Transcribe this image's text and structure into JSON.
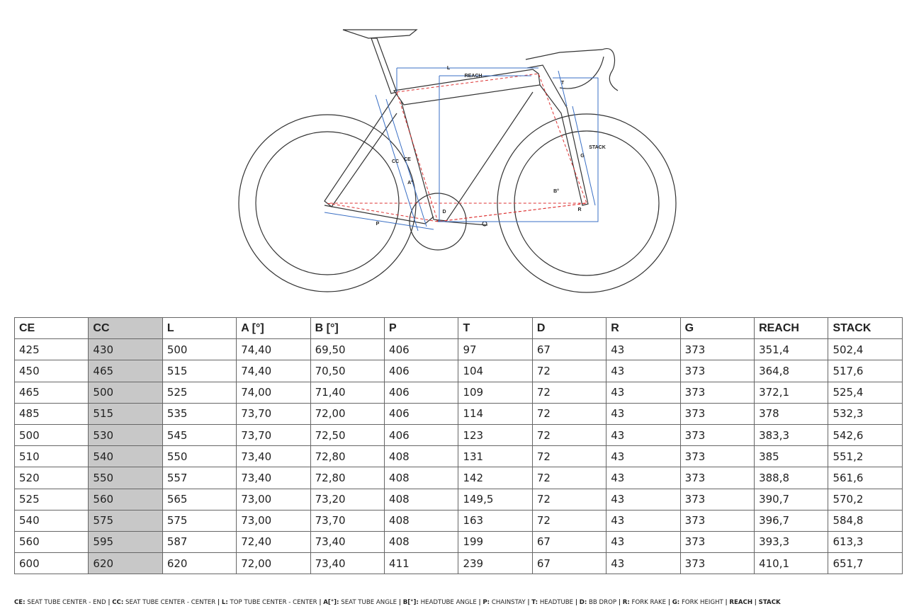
{
  "diagram": {
    "labels": {
      "l": "L",
      "reach": "REACH",
      "t": "T",
      "stack": "STACK",
      "g": "G",
      "cc": "CC",
      "ce": "CE",
      "a": "A°",
      "b": "B°",
      "d": "D",
      "r": "R",
      "p": "P"
    }
  },
  "table": {
    "header": [
      "CE",
      "CC",
      "L",
      "A [°]",
      "B [°]",
      "P",
      "T",
      "D",
      "R",
      "G",
      "REACH",
      "STACK"
    ],
    "rows": [
      [
        "425",
        "430",
        "500",
        "74,40",
        "69,50",
        "406",
        "97",
        "67",
        "43",
        "373",
        "351,4",
        "502,4"
      ],
      [
        "450",
        "465",
        "515",
        "74,40",
        "70,50",
        "406",
        "104",
        "72",
        "43",
        "373",
        "364,8",
        "517,6"
      ],
      [
        "465",
        "500",
        "525",
        "74,00",
        "71,40",
        "406",
        "109",
        "72",
        "43",
        "373",
        "372,1",
        "525,4"
      ],
      [
        "485",
        "515",
        "535",
        "73,70",
        "72,00",
        "406",
        "114",
        "72",
        "43",
        "373",
        "378",
        "532,3"
      ],
      [
        "500",
        "530",
        "545",
        "73,70",
        "72,50",
        "406",
        "123",
        "72",
        "43",
        "373",
        "383,3",
        "542,6"
      ],
      [
        "510",
        "540",
        "550",
        "73,40",
        "72,80",
        "408",
        "131",
        "72",
        "43",
        "373",
        "385",
        "551,2"
      ],
      [
        "520",
        "550",
        "557",
        "73,40",
        "72,80",
        "408",
        "142",
        "72",
        "43",
        "373",
        "388,8",
        "561,6"
      ],
      [
        "525",
        "560",
        "565",
        "73,00",
        "73,20",
        "408",
        "149,5",
        "72",
        "43",
        "373",
        "390,7",
        "570,2"
      ],
      [
        "540",
        "575",
        "575",
        "73,00",
        "73,70",
        "408",
        "163",
        "72",
        "43",
        "373",
        "396,7",
        "584,8"
      ],
      [
        "560",
        "595",
        "587",
        "72,40",
        "73,40",
        "408",
        "199",
        "67",
        "43",
        "373",
        "393,3",
        "613,3"
      ],
      [
        "600",
        "620",
        "620",
        "72,00",
        "73,40",
        "411",
        "239",
        "67",
        "43",
        "373",
        "410,1",
        "651,7"
      ]
    ]
  },
  "legend": {
    "separator": "|",
    "items": [
      {
        "key": "CE:",
        "desc": "SEAT TUBE CENTER - END"
      },
      {
        "key": "CC:",
        "desc": "SEAT TUBE CENTER - CENTER"
      },
      {
        "key": "L:",
        "desc": "TOP TUBE CENTER - CENTER"
      },
      {
        "key": "A[°]:",
        "desc": "SEAT TUBE ANGLE"
      },
      {
        "key": "B[°]:",
        "desc": "HEADTUBE ANGLE"
      },
      {
        "key": "P:",
        "desc": "CHAINSTAY"
      },
      {
        "key": "T:",
        "desc": "HEADTUBE"
      },
      {
        "key": "D:",
        "desc": "BB DROP"
      },
      {
        "key": "R:",
        "desc": "FORK RAKE"
      },
      {
        "key": "G:",
        "desc": "FORK HEIGHT"
      },
      {
        "key": "REACH"
      },
      {
        "key": "STACK"
      }
    ]
  }
}
